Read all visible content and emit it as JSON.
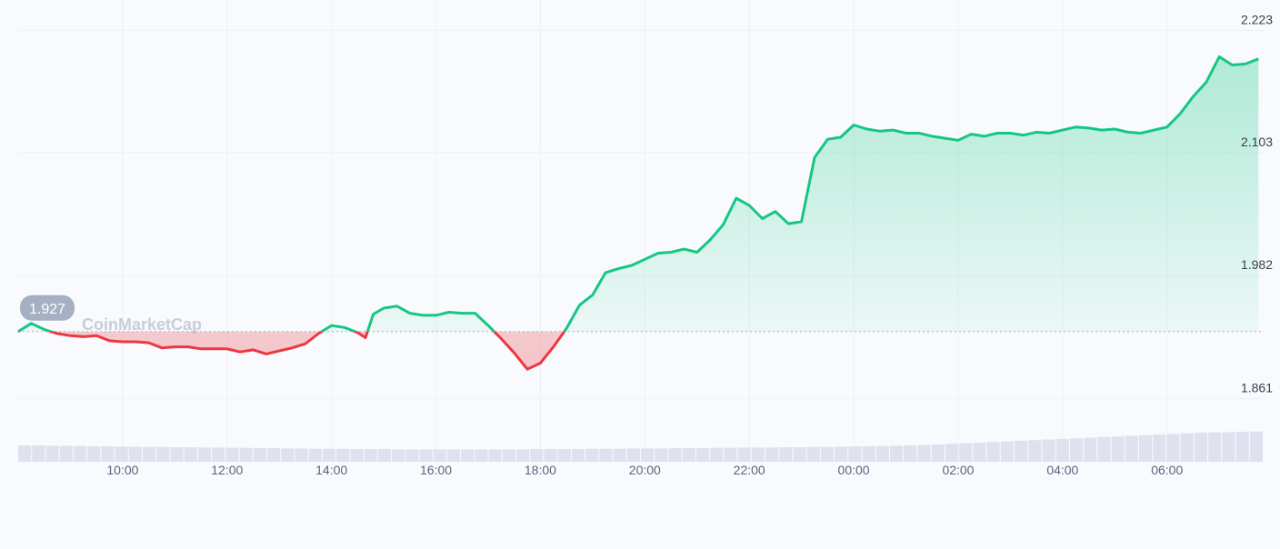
{
  "chart_data": {
    "type": "area",
    "baseline": 1.927,
    "baseline_label": "1.927",
    "ylim": [
      1.833,
      2.235
    ],
    "yticks": [
      {
        "value": 2.223,
        "label": "2.223"
      },
      {
        "value": 2.103,
        "label": "2.103"
      },
      {
        "value": 1.982,
        "label": "1.982"
      },
      {
        "value": 1.861,
        "label": "1.861"
      }
    ],
    "x_range_hours": [
      8.0,
      31.85
    ],
    "xticks": [
      {
        "hour": 10,
        "label": "10:00"
      },
      {
        "hour": 12,
        "label": "12:00"
      },
      {
        "hour": 14,
        "label": "14:00"
      },
      {
        "hour": 16,
        "label": "16:00"
      },
      {
        "hour": 18,
        "label": "18:00"
      },
      {
        "hour": 20,
        "label": "20:00"
      },
      {
        "hour": 22,
        "label": "22:00"
      },
      {
        "hour": 24,
        "label": "00:00"
      },
      {
        "hour": 26,
        "label": "02:00"
      },
      {
        "hour": 28,
        "label": "04:00"
      },
      {
        "hour": 30,
        "label": "06:00"
      }
    ],
    "grid": true,
    "watermark": "CoinMarketCap",
    "colors": {
      "up": "#16c784",
      "down": "#ea3943",
      "up_fill": "#16c784",
      "down_fill": "#ea3943"
    },
    "series": [
      {
        "points": [
          [
            8.0,
            1.927
          ],
          [
            8.25,
            1.935
          ],
          [
            8.5,
            1.929
          ],
          [
            8.75,
            1.925
          ],
          [
            9.0,
            1.923
          ],
          [
            9.25,
            1.922
          ],
          [
            9.5,
            1.923
          ],
          [
            9.75,
            1.918
          ],
          [
            10.0,
            1.917
          ],
          [
            10.25,
            1.917
          ],
          [
            10.5,
            1.916
          ],
          [
            10.75,
            1.911
          ],
          [
            11.0,
            1.912
          ],
          [
            11.25,
            1.912
          ],
          [
            11.5,
            1.91
          ],
          [
            11.75,
            1.91
          ],
          [
            12.0,
            1.91
          ],
          [
            12.25,
            1.907
          ],
          [
            12.5,
            1.909
          ],
          [
            12.75,
            1.905
          ],
          [
            13.0,
            1.908
          ],
          [
            13.25,
            1.911
          ],
          [
            13.5,
            1.915
          ],
          [
            13.75,
            1.925
          ],
          [
            14.0,
            1.933
          ],
          [
            14.25,
            1.931
          ],
          [
            14.5,
            1.926
          ],
          [
            14.65,
            1.921
          ],
          [
            14.8,
            1.944
          ],
          [
            15.0,
            1.95
          ],
          [
            15.25,
            1.952
          ],
          [
            15.5,
            1.945
          ],
          [
            15.75,
            1.943
          ],
          [
            16.0,
            1.943
          ],
          [
            16.25,
            1.946
          ],
          [
            16.5,
            1.945
          ],
          [
            16.75,
            1.945
          ],
          [
            17.0,
            1.933
          ],
          [
            17.25,
            1.92
          ],
          [
            17.5,
            1.906
          ],
          [
            17.75,
            1.89
          ],
          [
            18.0,
            1.896
          ],
          [
            18.25,
            1.912
          ],
          [
            18.5,
            1.93
          ],
          [
            18.75,
            1.953
          ],
          [
            19.0,
            1.963
          ],
          [
            19.25,
            1.985
          ],
          [
            19.5,
            1.989
          ],
          [
            19.75,
            1.992
          ],
          [
            20.0,
            1.998
          ],
          [
            20.25,
            2.004
          ],
          [
            20.5,
            2.005
          ],
          [
            20.75,
            2.008
          ],
          [
            21.0,
            2.005
          ],
          [
            21.25,
            2.017
          ],
          [
            21.5,
            2.032
          ],
          [
            21.75,
            2.058
          ],
          [
            22.0,
            2.051
          ],
          [
            22.25,
            2.038
          ],
          [
            22.5,
            2.045
          ],
          [
            22.75,
            2.033
          ],
          [
            23.0,
            2.035
          ],
          [
            23.25,
            2.098
          ],
          [
            23.5,
            2.116
          ],
          [
            23.75,
            2.118
          ],
          [
            24.0,
            2.13
          ],
          [
            24.25,
            2.126
          ],
          [
            24.5,
            2.124
          ],
          [
            24.75,
            2.125
          ],
          [
            25.0,
            2.122
          ],
          [
            25.25,
            2.122
          ],
          [
            25.5,
            2.119
          ],
          [
            25.75,
            2.117
          ],
          [
            26.0,
            2.115
          ],
          [
            26.25,
            2.121
          ],
          [
            26.5,
            2.119
          ],
          [
            26.75,
            2.122
          ],
          [
            27.0,
            2.122
          ],
          [
            27.25,
            2.12
          ],
          [
            27.5,
            2.123
          ],
          [
            27.75,
            2.122
          ],
          [
            28.0,
            2.125
          ],
          [
            28.25,
            2.128
          ],
          [
            28.5,
            2.127
          ],
          [
            28.75,
            2.125
          ],
          [
            29.0,
            2.126
          ],
          [
            29.25,
            2.123
          ],
          [
            29.5,
            2.122
          ],
          [
            29.75,
            2.125
          ],
          [
            30.0,
            2.128
          ],
          [
            30.25,
            2.141
          ],
          [
            30.5,
            2.158
          ],
          [
            30.75,
            2.172
          ],
          [
            31.0,
            2.197
          ],
          [
            31.25,
            2.189
          ],
          [
            31.5,
            2.19
          ],
          [
            31.75,
            2.195
          ]
        ]
      }
    ],
    "volume": {
      "values": [
        0.53,
        0.53,
        0.52,
        0.52,
        0.51,
        0.5,
        0.5,
        0.49,
        0.49,
        0.48,
        0.48,
        0.47,
        0.47,
        0.46,
        0.46,
        0.45,
        0.45,
        0.44,
        0.44,
        0.43,
        0.43,
        0.42,
        0.42,
        0.42,
        0.41,
        0.41,
        0.41,
        0.4,
        0.4,
        0.4,
        0.4,
        0.4,
        0.4,
        0.4,
        0.4,
        0.4,
        0.4,
        0.41,
        0.41,
        0.41,
        0.41,
        0.42,
        0.42,
        0.42,
        0.43,
        0.43,
        0.43,
        0.44,
        0.44,
        0.44,
        0.45,
        0.45,
        0.46,
        0.46,
        0.46,
        0.47,
        0.47,
        0.48,
        0.48,
        0.49,
        0.5,
        0.5,
        0.51,
        0.52,
        0.53,
        0.54,
        0.56,
        0.58,
        0.6,
        0.62,
        0.64,
        0.66,
        0.68,
        0.7,
        0.72,
        0.74,
        0.76,
        0.78,
        0.8,
        0.82,
        0.84,
        0.86,
        0.88,
        0.9,
        0.92,
        0.94,
        0.95,
        0.96,
        0.97,
        0.98
      ],
      "color": "#dfe2ee"
    }
  }
}
